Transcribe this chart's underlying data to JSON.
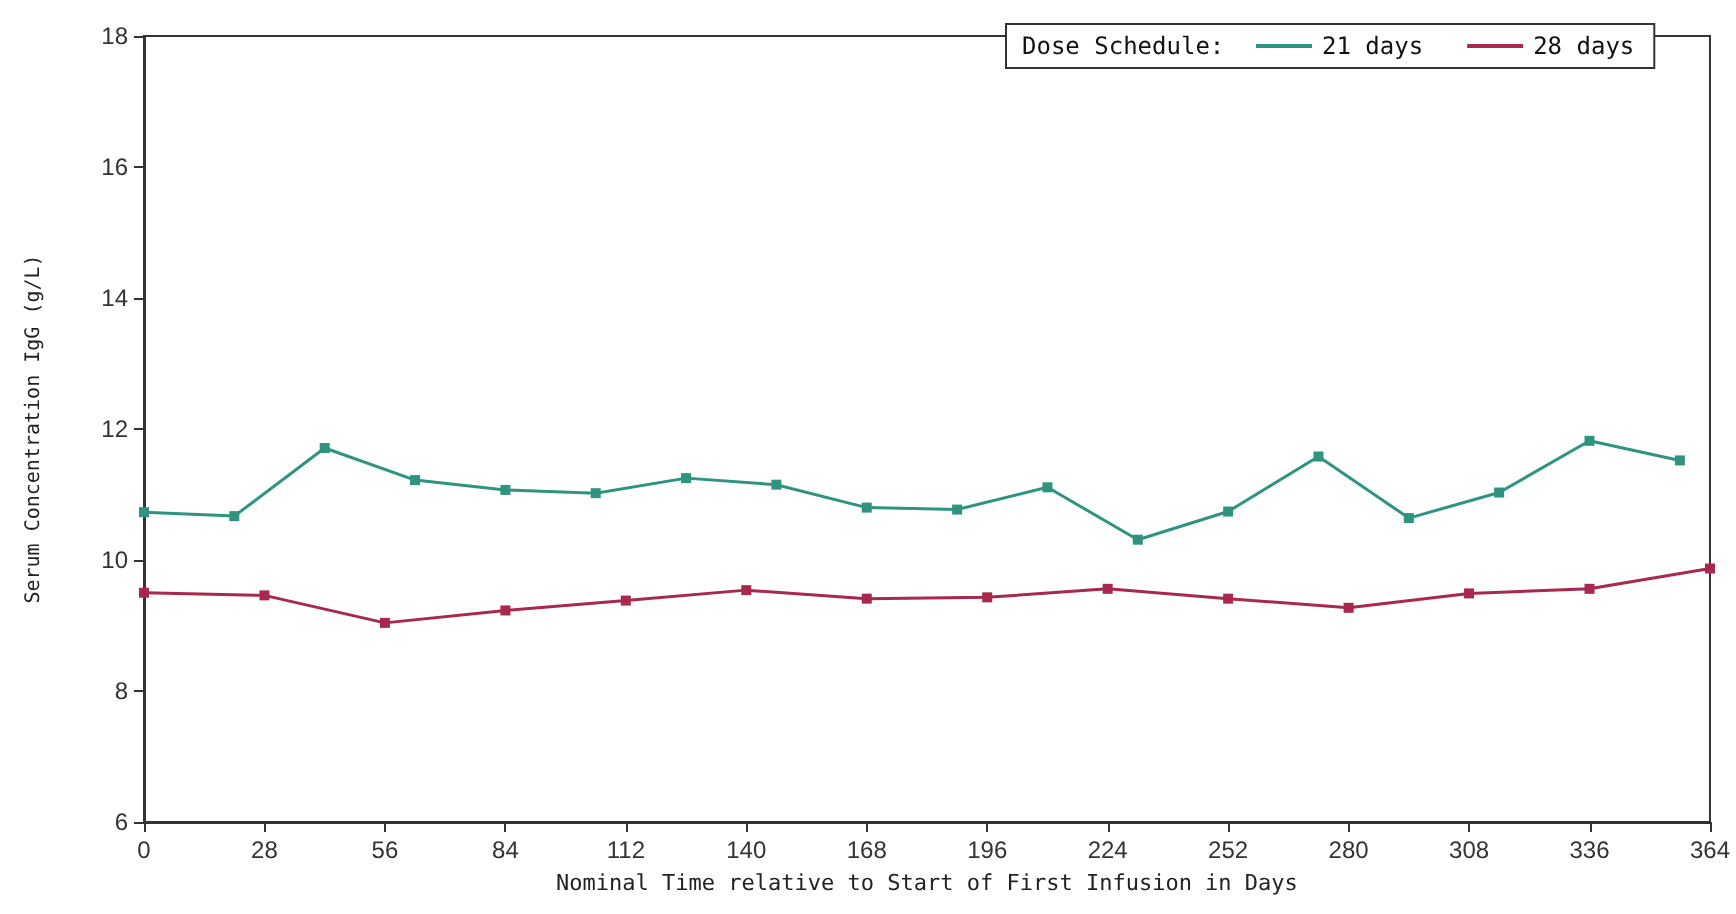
{
  "chart_data": {
    "type": "line",
    "xlabel": "Nominal Time relative to Start of First Infusion in Days",
    "ylabel": "Serum Concentration IgG (g/L)",
    "legend_title": "Dose Schedule:",
    "series": [
      {
        "name": "21 days",
        "color": "#2e9480",
        "x": [
          0,
          21,
          42,
          63,
          84,
          105,
          126,
          147,
          168,
          189,
          210,
          231,
          252,
          273,
          294,
          315,
          336,
          357
        ],
        "values": [
          10.73,
          10.67,
          11.71,
          11.22,
          11.07,
          11.02,
          11.25,
          11.15,
          10.8,
          10.77,
          11.11,
          10.31,
          10.74,
          11.58,
          10.64,
          11.03,
          11.82,
          11.52
        ]
      },
      {
        "name": "28 days",
        "color": "#a8284e",
        "x": [
          0,
          28,
          56,
          84,
          112,
          140,
          168,
          196,
          224,
          252,
          280,
          308,
          336,
          364
        ],
        "values": [
          9.5,
          9.46,
          9.04,
          9.23,
          9.38,
          9.54,
          9.41,
          9.43,
          9.56,
          9.41,
          9.27,
          9.49,
          9.56,
          9.87
        ]
      }
    ],
    "xlim": [
      0,
      364
    ],
    "xticks": [
      0,
      28,
      56,
      84,
      112,
      140,
      168,
      196,
      224,
      252,
      280,
      308,
      336,
      364
    ],
    "ylim": [
      6,
      18
    ],
    "yticks": [
      6,
      8,
      10,
      12,
      14,
      16,
      18
    ],
    "grid": false,
    "legend": "top right",
    "marker": "square",
    "line_style": "solid"
  }
}
